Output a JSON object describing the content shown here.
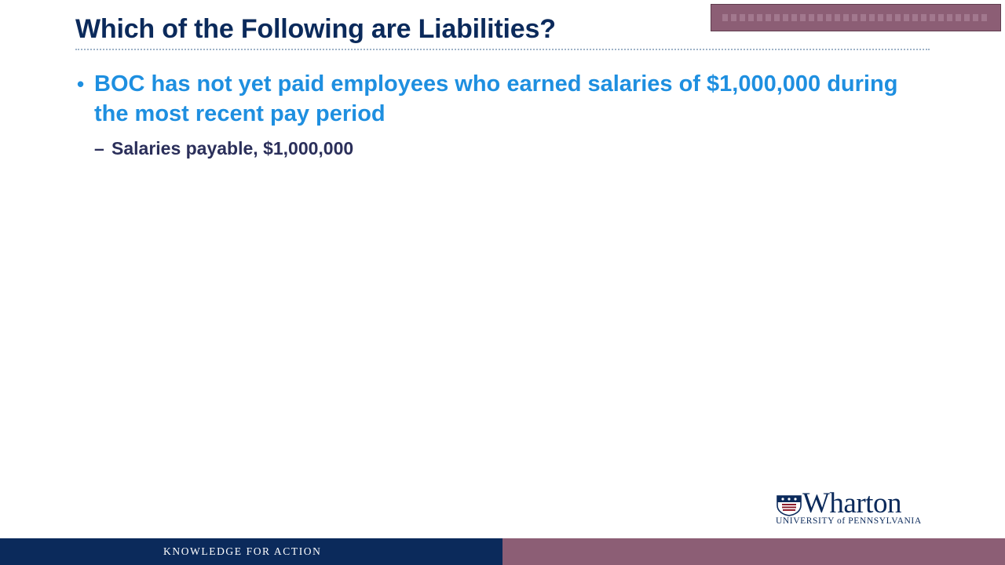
{
  "slide": {
    "title": "Which of the Following are Liabilities?",
    "bullets": [
      {
        "text": "BOC has not yet paid employees who earned salaries of $1,000,000 during the most recent pay period",
        "sub_items": [
          {
            "text": "Salaries payable, $1,000,000"
          }
        ]
      }
    ]
  },
  "logo": {
    "wordmark": "Wharton",
    "subline": "UNIVERSITY of PENNSYLVANIA"
  },
  "footer": {
    "tagline": "KNOWLEDGE FOR ACTION"
  },
  "colors": {
    "title": "#0b2a5b",
    "bullet": "#1e8fe0",
    "sub_bullet": "#2b2f5a",
    "navy": "#0b2a5b",
    "mauve": "#8c5e75"
  }
}
